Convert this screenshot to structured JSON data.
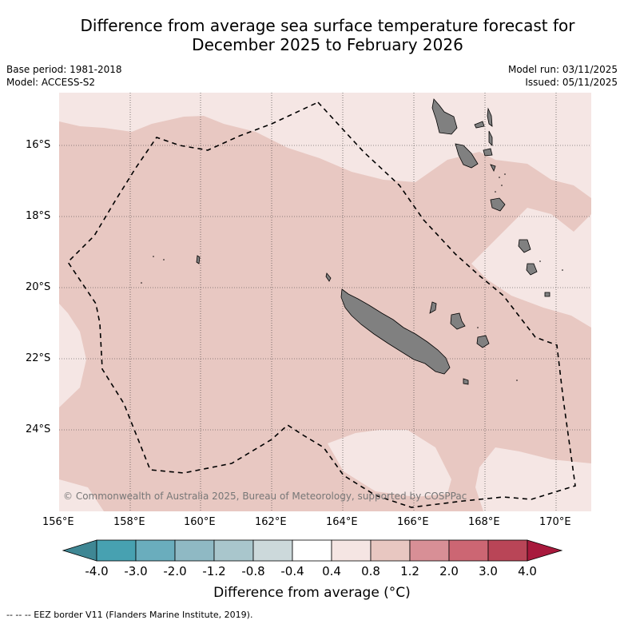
{
  "title_line1": "Difference from average sea surface temperature forecast for",
  "title_line2": "December 2025 to February 2026",
  "base_period": "Base period: 1981-2018",
  "model": "Model: ACCESS-S2",
  "model_run": "Model run: 03/11/2025",
  "issued": "Issued: 05/11/2025",
  "lat_labels": [
    "16°S",
    "18°S",
    "20°S",
    "22°S",
    "24°S"
  ],
  "lon_labels": [
    "156°E",
    "158°E",
    "160°E",
    "162°E",
    "164°E",
    "166°E",
    "168°E",
    "170°E"
  ],
  "copyright": "© Commonwealth of Australia 2025, Bureau of Meteorology, supported by COSPPac",
  "colorbar": {
    "labels": [
      "-4.0",
      "-3.0",
      "-2.0",
      "-1.2",
      "-0.8",
      "-0.4",
      "0.4",
      "0.8",
      "1.2",
      "2.0",
      "3.0",
      "4.0"
    ],
    "colors": [
      "#3f8794",
      "#47a1b1",
      "#6aadbd",
      "#8fb9c4",
      "#a9c6cc",
      "#ccd9db",
      "#ffffff",
      "#f5e5e3",
      "#e8c7c1",
      "#d88f96",
      "#cc6673",
      "#b94557",
      "#a8193c"
    ],
    "title": "Difference from average (°C)"
  },
  "colors": {
    "warm_light": "#f5e6e4",
    "warm_mid": "#e8c8c2",
    "land": "#808080"
  },
  "footer": "-- -- -- EEZ border V11 (Flanders Marine Institute, 2019)."
}
